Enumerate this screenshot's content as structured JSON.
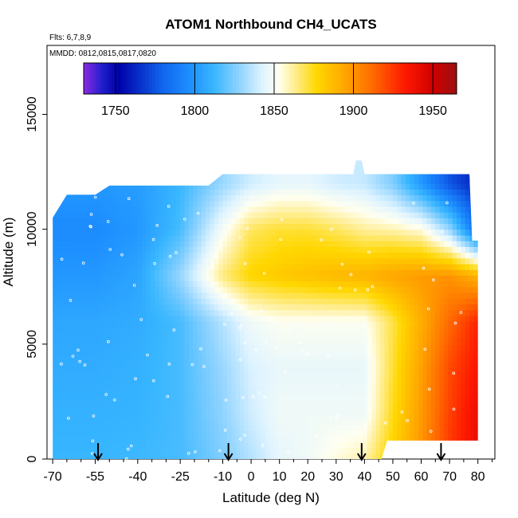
{
  "chart_data": {
    "type": "heatmap",
    "title": "ATOM1 Northbound CH4_UCATS",
    "flights_note": "Flts: 6,7,8,9",
    "dates_note": "MMDD: 0812,0815,0817,0820",
    "xlabel": "Latitude (deg N)",
    "ylabel": "Altitude (m)",
    "xlim": [
      -72,
      86
    ],
    "ylim": [
      0,
      18000
    ],
    "x_ticks": [
      -70,
      -55,
      -40,
      -25,
      -10,
      0,
      10,
      20,
      30,
      40,
      50,
      60,
      70,
      80
    ],
    "y_ticks": [
      0,
      5000,
      10000,
      15000
    ],
    "colorbar": {
      "range": [
        1730,
        1965
      ],
      "ticks": [
        1750,
        1800,
        1850,
        1900,
        1950
      ],
      "colors": [
        "#8a2be2",
        "#1e1ecc",
        "#0000a8",
        "#1166ee",
        "#1e90ff",
        "#38b6ff",
        "#8fd3ff",
        "#e0f4ff",
        "#fffff0",
        "#ffef9a",
        "#ffd700",
        "#ffa500",
        "#ff6a00",
        "#ff1a00",
        "#d00000",
        "#9c1010"
      ],
      "color_stops": [
        1730,
        1742,
        1752,
        1780,
        1797,
        1812,
        1828,
        1843,
        1853,
        1862,
        1877,
        1895,
        1912,
        1932,
        1950,
        1965
      ]
    },
    "arrows_lat": [
      -54,
      -8,
      39,
      67
    ],
    "data_extent": {
      "lat_min": -70,
      "lat_max": 80,
      "top_south_lat": -65,
      "top_south_alt": 11500,
      "top_mid_lat": -50,
      "top_mid_alt": 11900,
      "top_trop_lat": -10,
      "top_trop_alt": 12400,
      "top_north_lat": 77,
      "top_north_alt": 12400,
      "plume_top_lat": 38,
      "plume_top_alt": 13000
    },
    "field_description": "CH4 mole fraction (ppb) vs latitude and altitude",
    "field_samples": {
      "lat": [
        -70,
        -55,
        -40,
        -25,
        -10,
        0,
        10,
        20,
        30,
        40,
        50,
        60,
        70,
        80
      ],
      "alt": [
        0,
        2000,
        4000,
        6000,
        8000,
        10000,
        12000
      ],
      "values": [
        [
          1812,
          1812,
          1813,
          1815,
          1825,
          1835,
          1845,
          1848,
          1855,
          1860,
          1880,
          1900,
          1925,
          1940
        ],
        [
          1810,
          1810,
          1811,
          1815,
          1828,
          1840,
          1848,
          1848,
          1848,
          1848,
          1875,
          1898,
          1922,
          1940
        ],
        [
          1808,
          1808,
          1810,
          1815,
          1830,
          1842,
          1846,
          1846,
          1846,
          1846,
          1872,
          1896,
          1920,
          1935
        ],
        [
          1806,
          1806,
          1808,
          1815,
          1835,
          1848,
          1852,
          1852,
          1852,
          1852,
          1870,
          1892,
          1912,
          1930
        ],
        [
          1800,
          1800,
          1805,
          1830,
          1865,
          1878,
          1882,
          1885,
          1888,
          1890,
          1895,
          1898,
          1900,
          1890
        ],
        [
          1795,
          1795,
          1800,
          1815,
          1850,
          1868,
          1872,
          1872,
          1868,
          1862,
          1860,
          1855,
          1830,
          1780
        ],
        [
          1800,
          1800,
          1802,
          1812,
          1830,
          1840,
          1845,
          1845,
          1840,
          1838,
          1825,
          1800,
          1775,
          1760
        ]
      ]
    }
  }
}
